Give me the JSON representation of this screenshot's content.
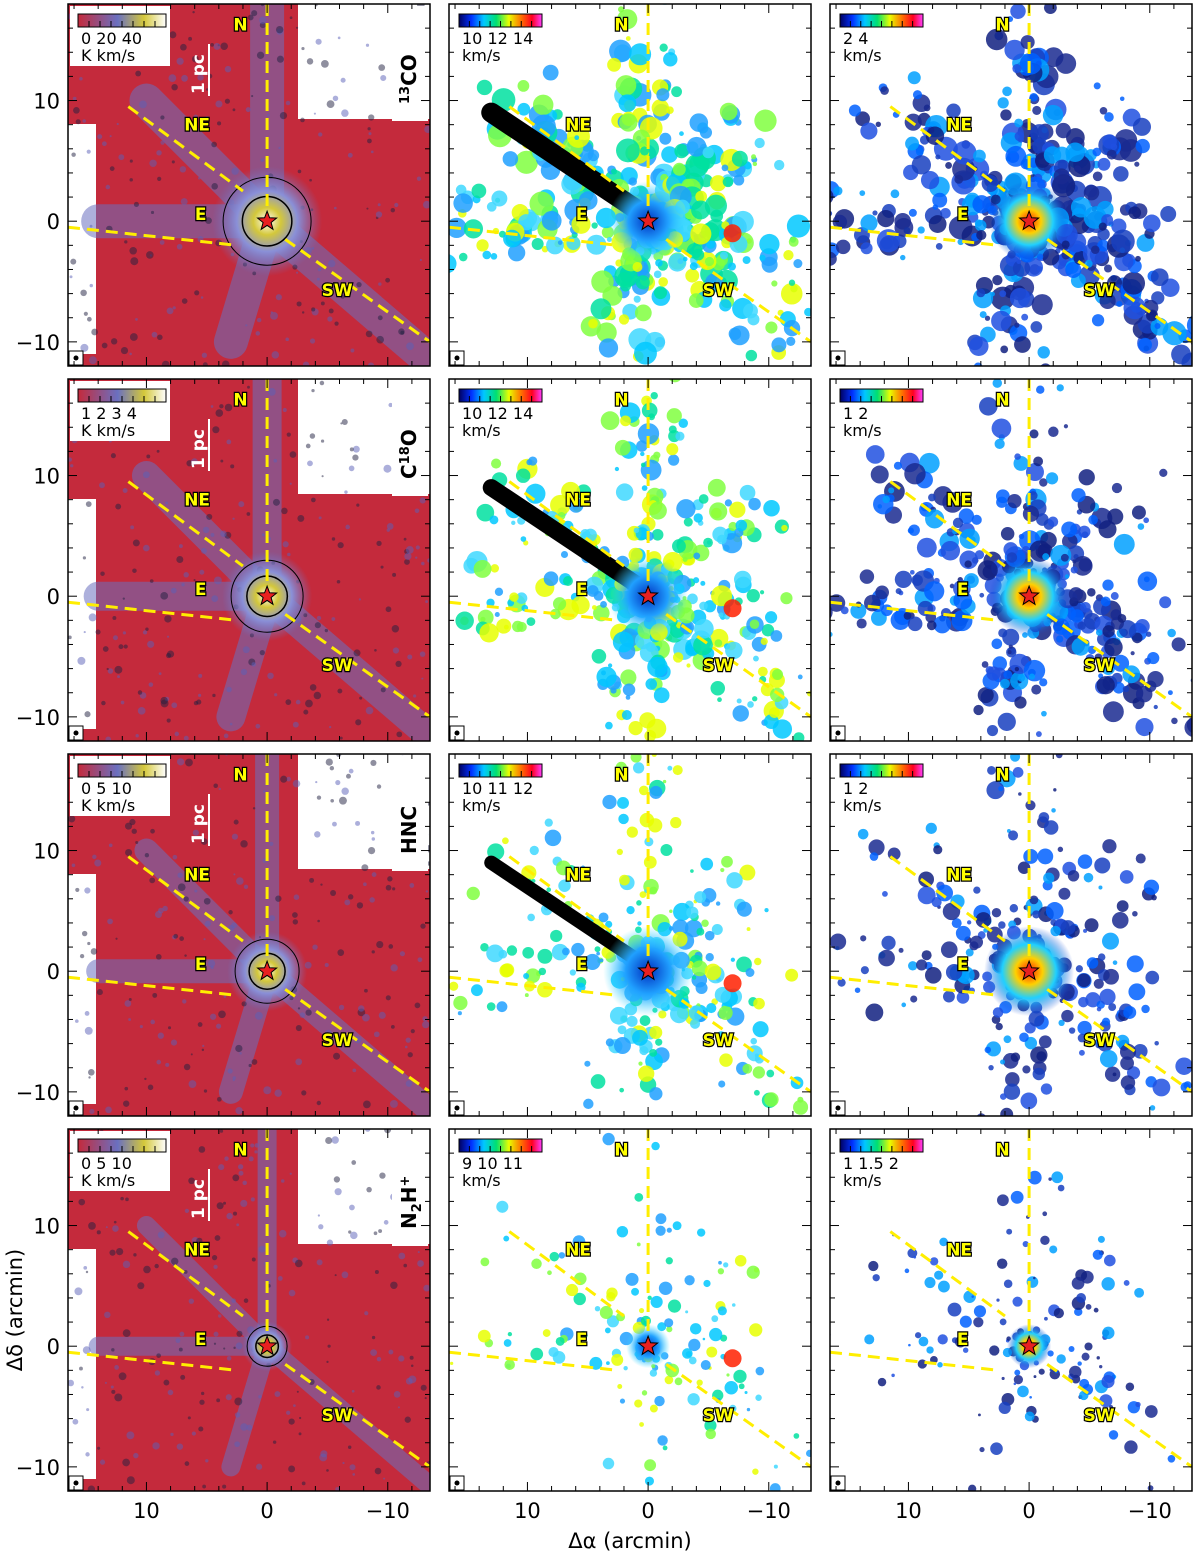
{
  "figure": {
    "x_axis_label": "Δα (arcmin)",
    "y_axis_label": "Δδ (arcmin)",
    "x_tick_labels": [
      "10",
      "0",
      "−10"
    ],
    "y_tick_labels": [
      "10",
      "0",
      "−10"
    ],
    "scale_bar_label": "1 pc",
    "region_labels": [
      "N",
      "NE",
      "E",
      "SW"
    ],
    "colors": {
      "integrated_background": "#c42a3c",
      "integrated_emission": "#6a70c0",
      "integrated_peak": "#d4c83a",
      "filament_lines": "#ffee00",
      "star": "#e82020"
    },
    "icons": [
      "star-marker-icon",
      "beam-icon"
    ]
  },
  "rows": [
    {
      "molecule": "13CO",
      "molecule_main": "13",
      "molecule_label_html": "CO",
      "integrated": {
        "ticks": "0  20 40",
        "unit": "K km/s"
      },
      "velocity": {
        "ticks": "10  12  14",
        "unit": "km/s"
      },
      "dispersion": {
        "ticks": "2    4",
        "unit": "km/s"
      }
    },
    {
      "molecule": "C18O",
      "molecule_main": "18",
      "molecule_label_html": "C  O",
      "integrated": {
        "ticks": "1 2 3 4",
        "unit": "K km/s"
      },
      "velocity": {
        "ticks": "10  12  14",
        "unit": "km/s"
      },
      "dispersion": {
        "ticks": "1    2",
        "unit": "km/s"
      }
    },
    {
      "molecule": "HNC",
      "molecule_main": "",
      "molecule_label_html": "HNC",
      "integrated": {
        "ticks": "0   5  10",
        "unit": "K km/s"
      },
      "velocity": {
        "ticks": "10  11  12",
        "unit": "km/s"
      },
      "dispersion": {
        "ticks": "1    2",
        "unit": "km/s"
      }
    },
    {
      "molecule": "N2H+",
      "molecule_main": "+",
      "molecule_label_html": "N H",
      "integrated": {
        "ticks": "0   5  10",
        "unit": "K km/s"
      },
      "velocity": {
        "ticks": "9  10  11",
        "unit": "km/s"
      },
      "dispersion": {
        "ticks": "1 1.5 2",
        "unit": "km/s"
      }
    }
  ]
}
